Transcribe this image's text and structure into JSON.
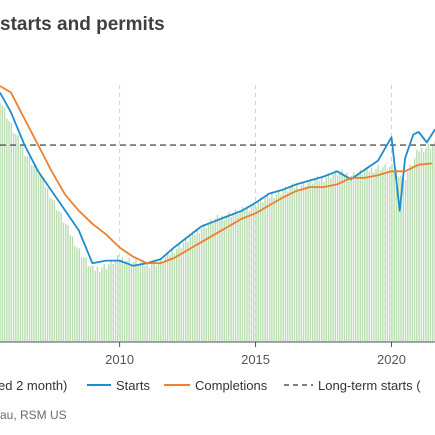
{
  "title": "starts and permits",
  "source": "au, RSM US",
  "chart_data": {
    "type": "line",
    "xlim": [
      2005.6,
      2021.6
    ],
    "ylim": [
      0,
      2300
    ],
    "xticks": [
      {
        "label": "2010",
        "value": 2010
      },
      {
        "label": "2015",
        "value": 2015
      },
      {
        "label": "2020",
        "value": 2020
      }
    ],
    "reference_line": {
      "name": "Long-term starts (",
      "value": 1500,
      "color": "#555555"
    },
    "series": [
      {
        "name": "ed 2 month)",
        "kind": "bar",
        "color": "#b9ddb0",
        "x": [
          2005.6,
          2006.0,
          2006.5,
          2007.0,
          2007.5,
          2008.0,
          2008.5,
          2009.0,
          2009.5,
          2010.0,
          2010.5,
          2011.0,
          2011.5,
          2012.0,
          2012.5,
          2013.0,
          2013.5,
          2014.0,
          2014.5,
          2015.0,
          2015.5,
          2016.0,
          2016.5,
          2017.0,
          2017.5,
          2018.0,
          2018.5,
          2019.0,
          2019.5,
          2020.0,
          2020.5,
          2021.0,
          2021.4
        ],
        "values": [
          1850,
          1650,
          1450,
          1300,
          1100,
          900,
          700,
          550,
          580,
          640,
          610,
          590,
          610,
          700,
          780,
          870,
          930,
          970,
          1000,
          1050,
          1110,
          1150,
          1190,
          1220,
          1250,
          1290,
          1270,
          1300,
          1330,
          1330,
          1250,
          1460,
          1500
        ]
      },
      {
        "name": "Starts",
        "kind": "line",
        "color": "#1f8ccf",
        "x": [
          2005.6,
          2006.0,
          2006.5,
          2007.0,
          2007.5,
          2008.0,
          2008.5,
          2009.0,
          2009.5,
          2010.0,
          2010.5,
          2011.0,
          2011.5,
          2012.0,
          2012.5,
          2013.0,
          2013.5,
          2014.0,
          2014.5,
          2015.0,
          2015.5,
          2016.0,
          2016.5,
          2017.0,
          2017.5,
          2018.0,
          2018.5,
          2019.0,
          2019.5,
          2020.0,
          2020.3,
          2020.5,
          2020.8,
          2021.0,
          2021.3,
          2021.6
        ],
        "values": [
          1900,
          1750,
          1500,
          1300,
          1150,
          1000,
          850,
          600,
          620,
          620,
          580,
          600,
          630,
          720,
          800,
          880,
          920,
          960,
          1000,
          1060,
          1130,
          1160,
          1200,
          1230,
          1260,
          1300,
          1240,
          1310,
          1380,
          1560,
          1000,
          1400,
          1580,
          1600,
          1520,
          1620
        ]
      },
      {
        "name": "Completions",
        "kind": "line",
        "color": "#ee7f2d",
        "x": [
          2005.6,
          2006.0,
          2006.5,
          2007.0,
          2007.5,
          2008.0,
          2008.5,
          2009.0,
          2009.5,
          2010.0,
          2010.5,
          2011.0,
          2011.5,
          2012.0,
          2012.5,
          2013.0,
          2013.5,
          2014.0,
          2014.5,
          2015.0,
          2015.5,
          2016.0,
          2016.5,
          2017.0,
          2017.5,
          2018.0,
          2018.5,
          2019.0,
          2019.5,
          2020.0,
          2020.5,
          2021.0,
          2021.5
        ],
        "values": [
          1950,
          1900,
          1700,
          1500,
          1300,
          1120,
          1000,
          900,
          820,
          720,
          650,
          600,
          600,
          640,
          700,
          760,
          820,
          880,
          940,
          980,
          1040,
          1100,
          1150,
          1180,
          1180,
          1200,
          1250,
          1250,
          1270,
          1300,
          1300,
          1350,
          1360
        ]
      }
    ],
    "legend": {
      "placement": "bottom"
    }
  }
}
